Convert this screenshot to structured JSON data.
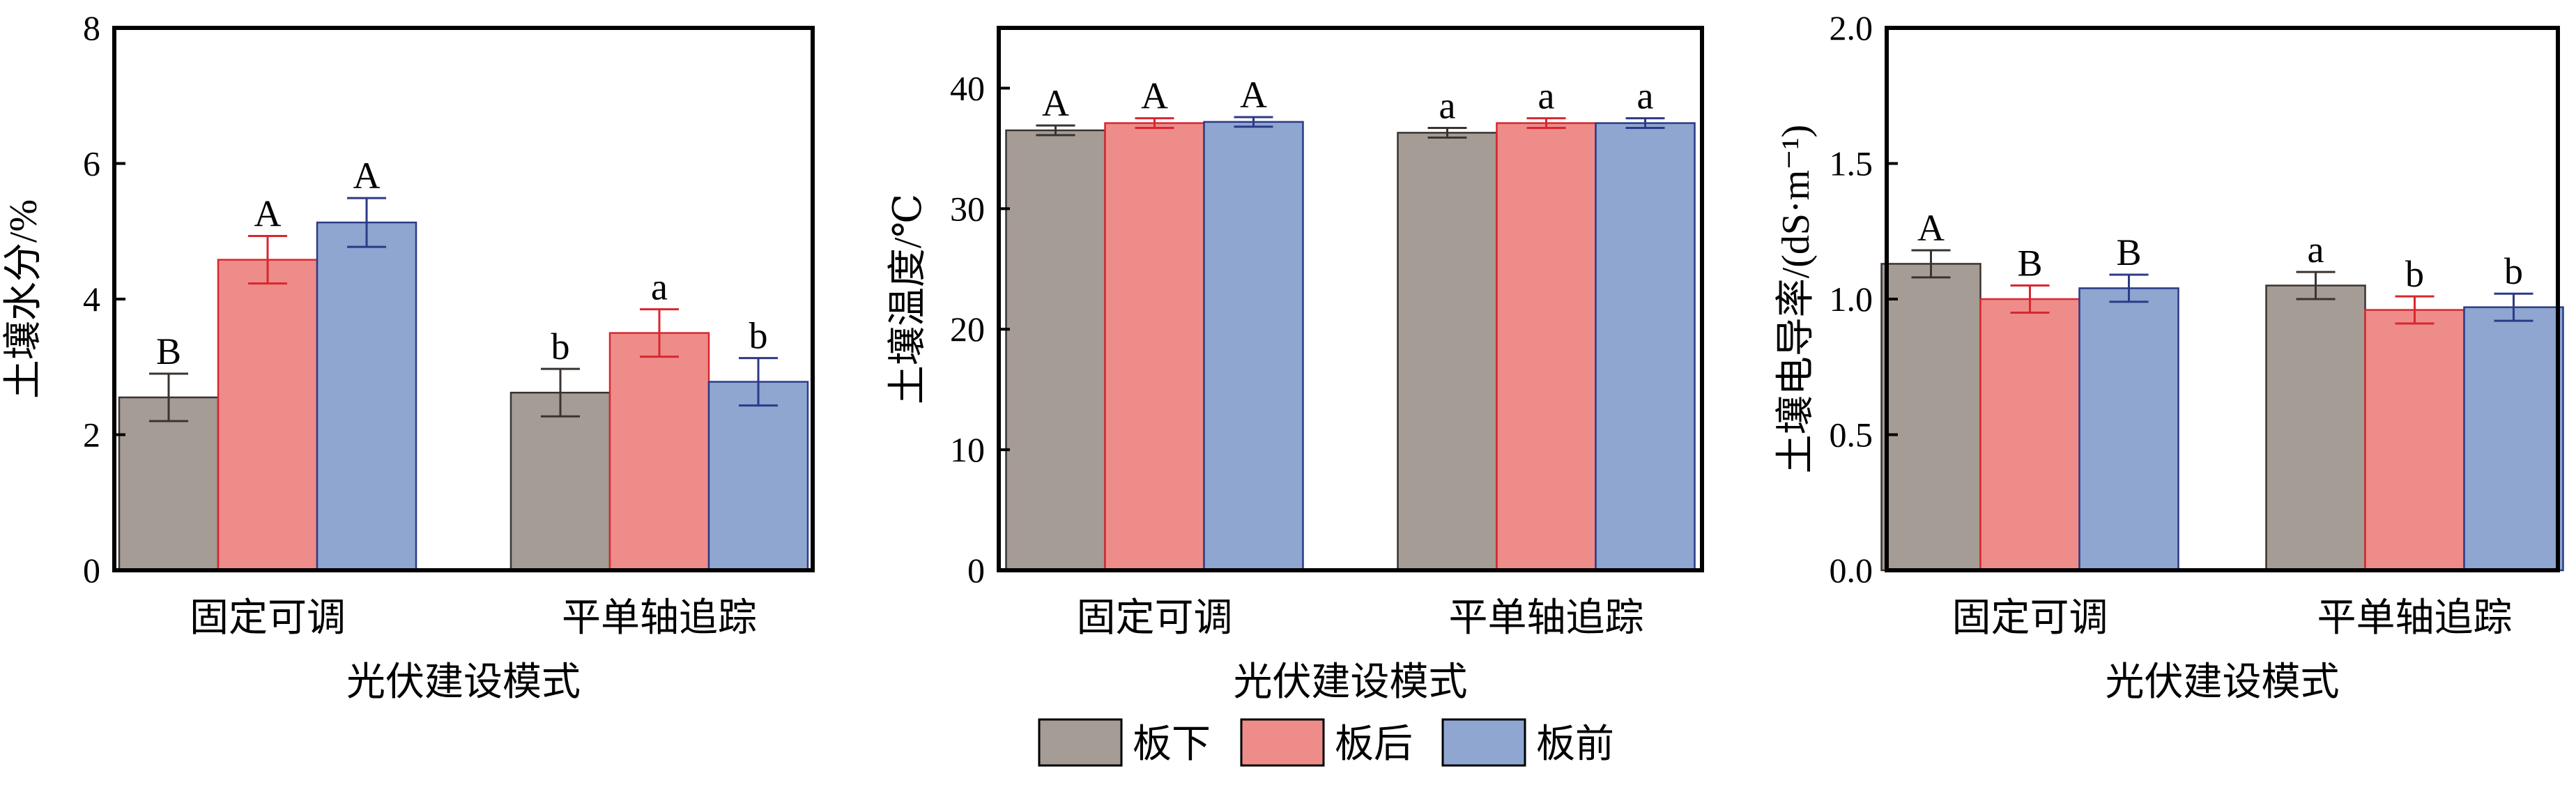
{
  "colors": {
    "series": [
      "#a59c95",
      "#ee8c8a",
      "#8ea6d0"
    ],
    "series_edge": [
      "#3a3430",
      "#d8272e",
      "#2c3a86"
    ],
    "axis": "#000000"
  },
  "legend": [
    "板下",
    "板后",
    "板前"
  ],
  "chart_data": [
    {
      "type": "bar",
      "categories": [
        "固定可调",
        "平单轴追踪"
      ],
      "series": [
        {
          "name": "板下",
          "values": [
            2.55,
            2.62
          ],
          "errors": [
            0.35,
            0.35
          ],
          "labels": [
            "B",
            "b"
          ]
        },
        {
          "name": "板后",
          "values": [
            4.58,
            3.5
          ],
          "errors": [
            0.35,
            0.35
          ],
          "labels": [
            "A",
            "a"
          ]
        },
        {
          "name": "板前",
          "values": [
            5.13,
            2.78
          ],
          "errors": [
            0.36,
            0.35
          ],
          "labels": [
            "A",
            "b"
          ]
        }
      ],
      "xlabel": "光伏建设模式",
      "ylabel": "土壤水分/%",
      "ylim": [
        0,
        8
      ],
      "yticks": [
        "0",
        "2",
        "4",
        "6",
        "8"
      ]
    },
    {
      "type": "bar",
      "categories": [
        "固定可调",
        "平单轴追踪"
      ],
      "series": [
        {
          "name": "板下",
          "values": [
            36.5,
            36.3
          ],
          "errors": [
            0.4,
            0.4
          ],
          "labels": [
            "A",
            "a"
          ]
        },
        {
          "name": "板后",
          "values": [
            37.1,
            37.1
          ],
          "errors": [
            0.4,
            0.4
          ],
          "labels": [
            "A",
            "a"
          ]
        },
        {
          "name": "板前",
          "values": [
            37.2,
            37.1
          ],
          "errors": [
            0.4,
            0.4
          ],
          "labels": [
            "A",
            "a"
          ]
        }
      ],
      "xlabel": "光伏建设模式",
      "ylabel": "土壤温度/℃",
      "ylim": [
        0,
        45
      ],
      "yticks": [
        "0",
        "10",
        "20",
        "30",
        "40"
      ]
    },
    {
      "type": "bar",
      "categories": [
        "固定可调",
        "平单轴追踪"
      ],
      "series": [
        {
          "name": "板下",
          "values": [
            1.13,
            1.05
          ],
          "errors": [
            0.05,
            0.05
          ],
          "labels": [
            "A",
            "a"
          ]
        },
        {
          "name": "板后",
          "values": [
            1.0,
            0.96
          ],
          "errors": [
            0.05,
            0.05
          ],
          "labels": [
            "B",
            "b"
          ]
        },
        {
          "name": "板前",
          "values": [
            1.04,
            0.97
          ],
          "errors": [
            0.05,
            0.05
          ],
          "labels": [
            "B",
            "b"
          ]
        }
      ],
      "xlabel": "光伏建设模式",
      "ylabel": "土壤电导率/(dS·m⁻¹)",
      "ylim": [
        0,
        2.0
      ],
      "yticks": [
        "0.0",
        "0.5",
        "1.0",
        "1.5",
        "2.0"
      ]
    }
  ]
}
